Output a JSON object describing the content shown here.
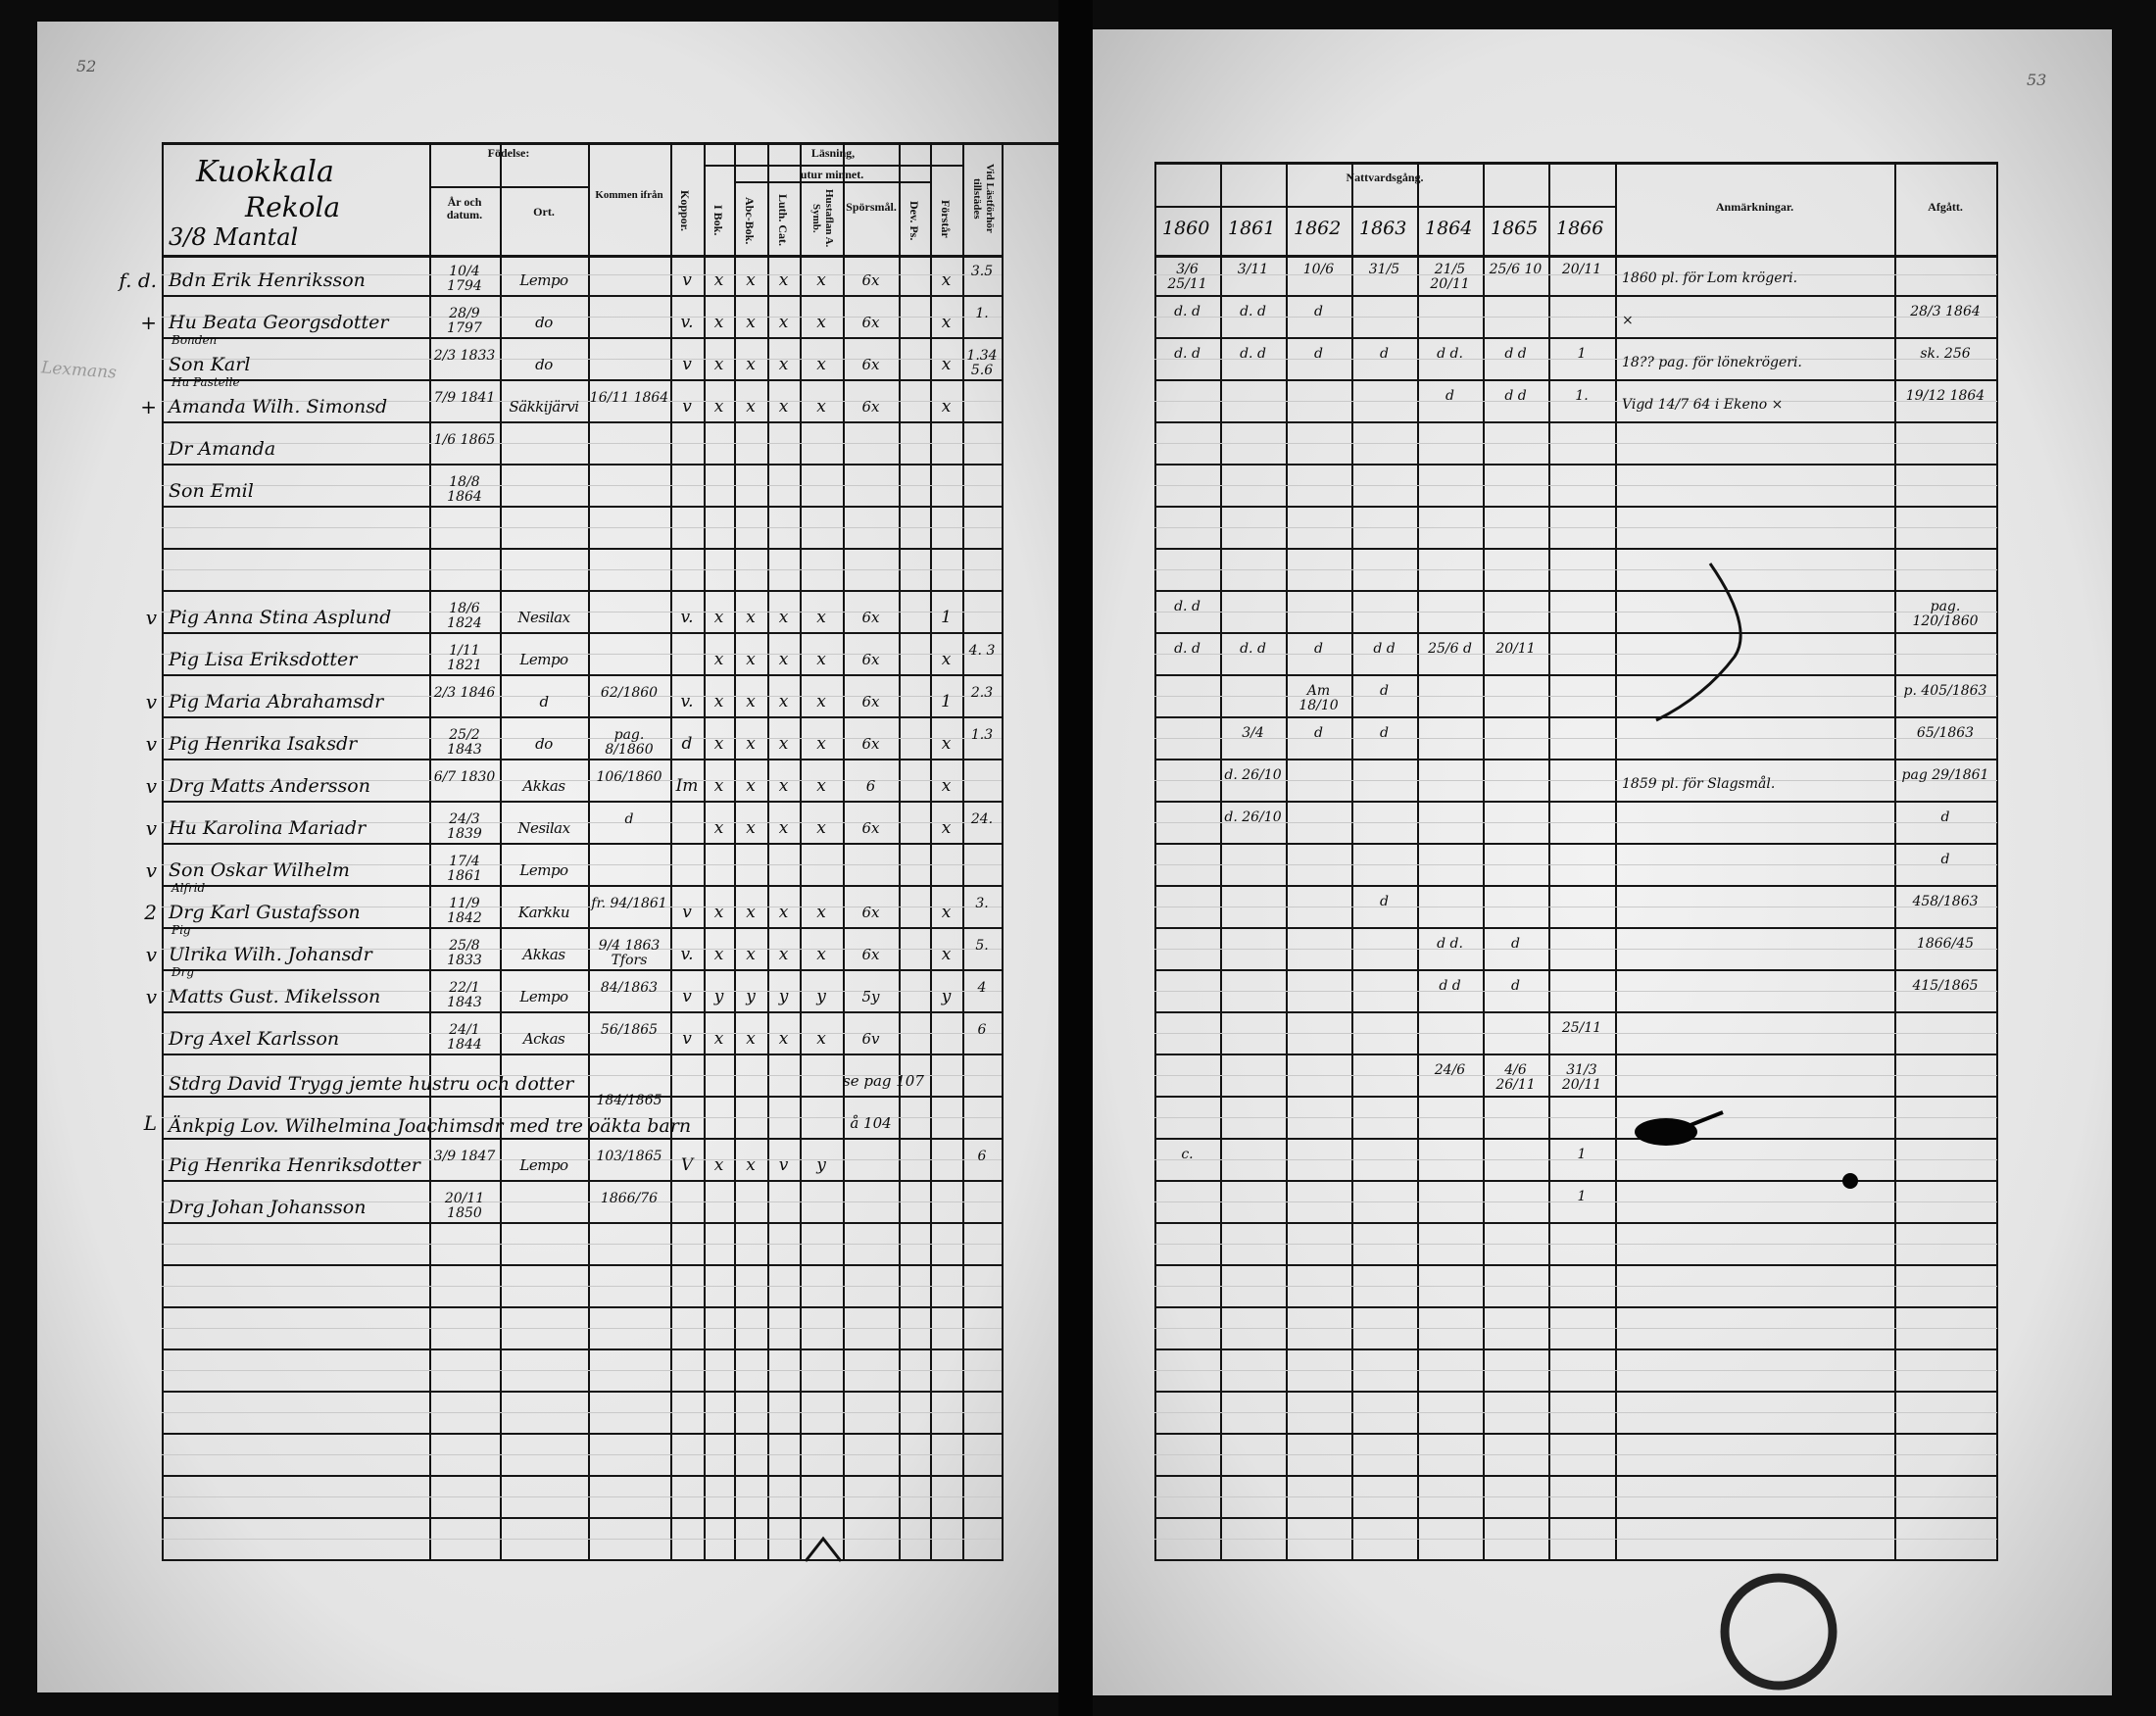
{
  "page_numbers": {
    "left": "52",
    "right": "53"
  },
  "left_page": {
    "place_heading": [
      "Kuokkala",
      "Rekola",
      "3/8 Mantal"
    ],
    "margin_note": "Lexmans",
    "headers": {
      "fodelse": "Födelse:",
      "ar_datum": "År och datum.",
      "ort": "Ort.",
      "kommen": "Kommen ifrån",
      "koppor": "Koppor.",
      "lasning": "Läsning,",
      "utur_minnet": "utur minnet.",
      "i_bok": "I Bok.",
      "abc": "Abc-Bok.",
      "luth": "Luth. Cat.",
      "husta": "Hustaflan A. Symb.",
      "spor": "Spörsmål.",
      "dev": "Dev. Ps.",
      "forstar": "Förstår",
      "lf": "Vid Lästförhör tillstädes"
    },
    "rows": [
      {
        "mark": "f. d.",
        "above": "",
        "name": "Bdn Erik Henriksson",
        "born": "10/4 1794",
        "place": "Lempo",
        "from": "",
        "koppor": "v",
        "ibok": "x",
        "abc": "x",
        "luth": "x",
        "husta": "x",
        "spor": "6x",
        "dev": "",
        "forstar": "x",
        "lf": "3.5"
      },
      {
        "mark": "+",
        "above": "",
        "name": "Hu Beata Georgsdotter",
        "born": "28/9 1797",
        "place": "do",
        "from": "",
        "koppor": "v.",
        "ibok": "x",
        "abc": "x",
        "luth": "x",
        "husta": "x",
        "spor": "6x",
        "dev": "",
        "forstar": "x",
        "lf": "1."
      },
      {
        "mark": "",
        "above": "Bonden",
        "name": "Son Karl",
        "born": "2/3 1833",
        "place": "do",
        "from": "",
        "koppor": "v",
        "ibok": "x",
        "abc": "x",
        "luth": "x",
        "husta": "x",
        "spor": "6x",
        "dev": "",
        "forstar": "x",
        "lf": "1.34 5.6"
      },
      {
        "mark": "+",
        "above": "Hu   Pastelle",
        "name": "Amanda Wilh. Simonsd",
        "born": "7/9 1841",
        "place": "Säkkijärvi",
        "from": "16/11 1864",
        "koppor": "v",
        "ibok": "x",
        "abc": "x",
        "luth": "x",
        "husta": "x",
        "spor": "6x",
        "dev": "",
        "forstar": "x",
        "lf": ""
      },
      {
        "mark": "",
        "above": "",
        "name": "Dr Amanda",
        "born": "1/6 1865",
        "place": "",
        "from": "",
        "koppor": "",
        "ibok": "",
        "abc": "",
        "luth": "",
        "husta": "",
        "spor": "",
        "dev": "",
        "forstar": "",
        "lf": ""
      },
      {
        "mark": "",
        "above": "",
        "name": "Son Emil",
        "born": "18/8 1864",
        "place": "",
        "from": "",
        "koppor": "",
        "ibok": "",
        "abc": "",
        "luth": "",
        "husta": "",
        "spor": "",
        "dev": "",
        "forstar": "",
        "lf": ""
      },
      {},
      {},
      {
        "mark": "v",
        "above": "",
        "name": "Pig Anna Stina Asplund",
        "born": "18/6 1824",
        "place": "Nesilax",
        "from": "",
        "koppor": "v.",
        "ibok": "x",
        "abc": "x",
        "luth": "x",
        "husta": "x",
        "spor": "6x",
        "dev": "",
        "forstar": "1",
        "lf": ""
      },
      {
        "mark": "",
        "above": "",
        "name": "Pig Lisa Eriksdotter",
        "born": "1/11 1821",
        "place": "Lempo",
        "from": "",
        "koppor": "",
        "ibok": "x",
        "abc": "x",
        "luth": "x",
        "husta": "x",
        "spor": "6x",
        "dev": "",
        "forstar": "x",
        "lf": "4. 3"
      },
      {
        "mark": "v",
        "above": "",
        "name": "Pig Maria Abrahamsdr",
        "born": "2/3 1846",
        "place": "d",
        "from": "62/1860",
        "koppor": "v.",
        "ibok": "x",
        "abc": "x",
        "luth": "x",
        "husta": "x",
        "spor": "6x",
        "dev": "",
        "forstar": "1",
        "lf": "2.3"
      },
      {
        "mark": "v",
        "above": "",
        "name": "Pig Henrika Isaksdr",
        "born": "25/2 1843",
        "place": "do",
        "from": "pag. 8/1860",
        "koppor": "d",
        "ibok": "x",
        "abc": "x",
        "luth": "x",
        "husta": "x",
        "spor": "6x",
        "dev": "",
        "forstar": "x",
        "lf": "1.3"
      },
      {
        "mark": "v",
        "above": "",
        "name": "Drg Matts Andersson",
        "born": "6/7 1830",
        "place": "Akkas",
        "from": "106/1860",
        "koppor": "Im",
        "ibok": "x",
        "abc": "x",
        "luth": "x",
        "husta": "x",
        "spor": "6",
        "dev": "",
        "forstar": "x",
        "lf": ""
      },
      {
        "mark": "v",
        "above": "",
        "name": "Hu Karolina Mariadr",
        "born": "24/3 1839",
        "place": "Nesilax",
        "from": "d",
        "koppor": "",
        "ibok": "x",
        "abc": "x",
        "luth": "x",
        "husta": "x",
        "spor": "6x",
        "dev": "",
        "forstar": "x",
        "lf": "24."
      },
      {
        "mark": "v",
        "above": "",
        "name": "Son Oskar Wilhelm",
        "born": "17/4 1861",
        "place": "Lempo",
        "from": "",
        "koppor": "",
        "ibok": "",
        "abc": "",
        "luth": "",
        "husta": "",
        "spor": "",
        "dev": "",
        "forstar": "",
        "lf": ""
      },
      {
        "mark": "2",
        "above": "Alfrid",
        "name": "Drg Karl Gustafsson",
        "born": "11/9 1842",
        "place": "Karkku",
        "from": "fr. 94/1861",
        "koppor": "v",
        "ibok": "x",
        "abc": "x",
        "luth": "x",
        "husta": "x",
        "spor": "6x",
        "dev": "",
        "forstar": "x",
        "lf": "3."
      },
      {
        "mark": "v",
        "above": "Pig",
        "name": "Ulrika Wilh. Johansdr",
        "born": "25/8 1833",
        "place": "Akkas",
        "from": "9/4 1863 Tfors",
        "koppor": "v.",
        "ibok": "x",
        "abc": "x",
        "luth": "x",
        "husta": "x",
        "spor": "6x",
        "dev": "",
        "forstar": "x",
        "lf": "5."
      },
      {
        "mark": "v",
        "above": "Drg",
        "name": "Matts Gust. Mikelsson",
        "born": "22/1 1843",
        "place": "Lempo",
        "from": "84/1863",
        "koppor": "v",
        "ibok": "y",
        "abc": "y",
        "luth": "y",
        "husta": "y",
        "spor": "5y",
        "dev": "",
        "forstar": "y",
        "lf": "4"
      },
      {
        "mark": "",
        "above": "",
        "name": "Drg Axel Karlsson",
        "born": "24/1 1844",
        "place": "Ackas",
        "from": "56/1865",
        "koppor": "v",
        "ibok": "x",
        "abc": "x",
        "luth": "x",
        "husta": "x",
        "spor": "6v",
        "dev": "",
        "forstar": "",
        "lf": "6"
      },
      {
        "mark": "",
        "above": "",
        "name": "Stdrg David Trygg jemte hustru och dotter",
        "born": "",
        "place": "",
        "from": "",
        "koppor": "",
        "ibok": "",
        "abc": "",
        "luth": "",
        "husta": "",
        "spor": "se pag 107",
        "dev": "",
        "forstar": "",
        "lf": ""
      },
      {
        "mark": "L",
        "above": "",
        "name": "Änkpig Lov. Wilhelmina Joachimsdr med tre oäkta barn",
        "born": "",
        "place": "",
        "from": "184/1865",
        "koppor": "",
        "ibok": "",
        "abc": "",
        "luth": "",
        "husta": "",
        "spor": "å 104",
        "dev": "",
        "forstar": "",
        "lf": ""
      },
      {
        "mark": "",
        "above": "",
        "name": "Pig Henrika Henriksdotter",
        "born": "3/9 1847",
        "place": "Lempo",
        "from": "103/1865",
        "koppor": "V",
        "ibok": "x",
        "abc": "x",
        "luth": "v",
        "husta": "y",
        "spor": "",
        "dev": "",
        "forstar": "",
        "lf": "6"
      },
      {
        "mark": "",
        "above": "",
        "name": "Drg Johan Johansson",
        "born": "20/11 1850",
        "place": "",
        "from": "1866/76",
        "koppor": "",
        "ibok": "",
        "abc": "",
        "luth": "",
        "husta": "",
        "spor": "",
        "dev": "",
        "forstar": "",
        "lf": ""
      }
    ]
  },
  "right_page": {
    "headers": {
      "nattvard": "Nattvardsgång.",
      "years": [
        "1860",
        "1861",
        "1862",
        "1863",
        "1864",
        "1865",
        "1866"
      ],
      "anm": "Anmärkningar.",
      "afgift": "Afgått."
    },
    "rows": [
      {
        "y": [
          "3/6 25/11",
          "3/11",
          "10/6",
          "31/5",
          "21/5 20/11",
          "25/6 10",
          "20/11"
        ],
        "anm": "1860 pl. för Lom krögeri.",
        "afgift": ""
      },
      {
        "y": [
          "d. d",
          "d. d",
          "d",
          "",
          "",
          "",
          ""
        ],
        "anm": "×",
        "afgift": "28/3 1864"
      },
      {
        "y": [
          "d. d",
          "d. d",
          "d",
          "d",
          "d d.",
          "d d",
          "1"
        ],
        "anm": "18?? pag. för lönekrögeri.",
        "afgift": "sk. 256"
      },
      {
        "y": [
          "",
          "",
          "",
          "",
          "d",
          "d d",
          "1."
        ],
        "anm": "Vigd 14/7 64 i Ekeno   ×",
        "afgift": "19/12 1864"
      },
      {},
      {},
      {},
      {},
      {
        "y": [
          "d. d",
          "",
          "",
          "",
          "",
          "",
          ""
        ],
        "anm": "",
        "afgift": "pag. 120/1860"
      },
      {
        "y": [
          "d. d",
          "d. d",
          "d",
          "d d",
          "25/6 d",
          "20/11",
          ""
        ],
        "anm": "",
        "afgift": ""
      },
      {
        "y": [
          "",
          "",
          "Am 18/10",
          "d",
          "",
          "",
          ""
        ],
        "anm": "",
        "afgift": "p. 405/1863"
      },
      {
        "y": [
          "",
          "3/4",
          "d",
          "d",
          "",
          "",
          ""
        ],
        "anm": "",
        "afgift": "65/1863"
      },
      {
        "y": [
          "",
          "d. 26/10",
          "",
          "",
          "",
          "",
          ""
        ],
        "anm": "1859 pl. för Slagsmål.",
        "afgift": "pag 29/1861"
      },
      {
        "y": [
          "",
          "d. 26/10",
          "",
          "",
          "",
          "",
          ""
        ],
        "anm": "",
        "afgift": "d"
      },
      {
        "y": [
          "",
          "",
          "",
          "",
          "",
          "",
          ""
        ],
        "anm": "",
        "afgift": "d"
      },
      {
        "y": [
          "",
          "",
          "",
          "d",
          "",
          "",
          ""
        ],
        "anm": "",
        "afgift": "458/1863"
      },
      {
        "y": [
          "",
          "",
          "",
          "",
          "d d.",
          "d",
          ""
        ],
        "anm": "",
        "afgift": "1866/45"
      },
      {
        "y": [
          "",
          "",
          "",
          "",
          "d d",
          "d",
          ""
        ],
        "anm": "",
        "afgift": "415/1865"
      },
      {
        "y": [
          "",
          "",
          "",
          "",
          "",
          "",
          "25/11"
        ],
        "anm": "",
        "afgift": ""
      },
      {
        "y": [
          "",
          "",
          "",
          "",
          "24/6",
          "4/6 26/11",
          "31/3 20/11"
        ],
        "anm": "",
        "afgift": ""
      },
      {},
      {
        "y": [
          "c.",
          "",
          "",
          "",
          "",
          "",
          "1"
        ],
        "anm": "",
        "afgift": ""
      },
      {
        "y": [
          "",
          "",
          "",
          "",
          "",
          "",
          "1"
        ],
        "anm": "",
        "afgift": ""
      }
    ]
  }
}
